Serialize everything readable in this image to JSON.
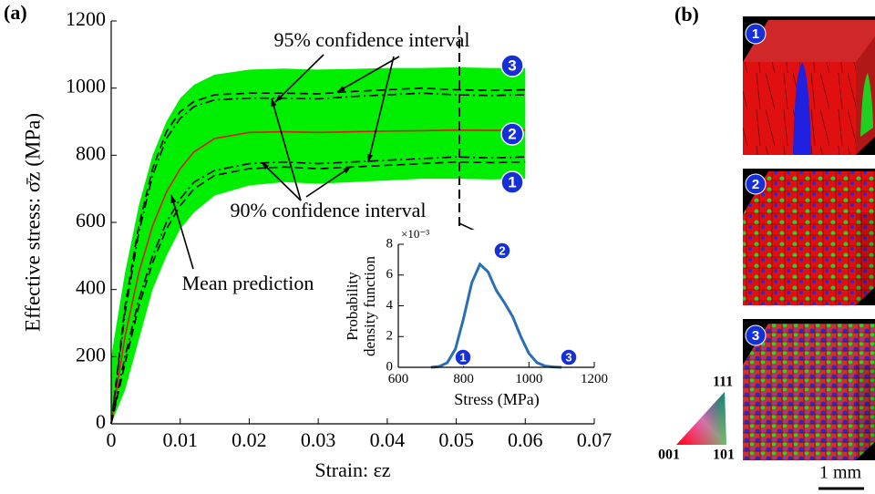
{
  "panel_labels": [
    "(a)",
    "(b)"
  ],
  "markers": [
    "1",
    "2",
    "3"
  ],
  "ipf_labels": [
    "111",
    "001",
    "101"
  ],
  "scale_bar": "1 mm",
  "chart_data": [
    {
      "type": "line",
      "xlabel": "Strain: εz",
      "ylabel": "Effective stress: σ̄z (MPa)",
      "xlim": [
        0,
        0.07
      ],
      "xticks": [
        0,
        0.01,
        0.02,
        0.03,
        0.04,
        0.05,
        0.06,
        0.07
      ],
      "ylim": [
        0,
        1200
      ],
      "yticks": [
        0,
        200,
        400,
        600,
        800,
        1000,
        1200
      ],
      "x": [
        0,
        0.002,
        0.004,
        0.006,
        0.008,
        0.01,
        0.012,
        0.015,
        0.02,
        0.025,
        0.03,
        0.035,
        0.04,
        0.045,
        0.05,
        0.055,
        0.06
      ],
      "band": {
        "color": "#00ee00",
        "upper": [
          200,
          450,
          650,
          800,
          900,
          970,
          1010,
          1040,
          1055,
          1058,
          1055,
          1057,
          1060,
          1060,
          1062,
          1060,
          1060
        ],
        "lower": [
          0,
          100,
          250,
          400,
          500,
          580,
          630,
          680,
          710,
          720,
          715,
          720,
          725,
          730,
          730,
          728,
          730
        ]
      },
      "series": [
        {
          "color": "#d62020",
          "style": "solid",
          "values": [
            0,
            260,
            450,
            590,
            690,
            760,
            810,
            850,
            868,
            870,
            868,
            870,
            872,
            873,
            875,
            874,
            875
          ]
        },
        {
          "color": "#000000",
          "style": "dashed",
          "values": [
            0,
            350,
            590,
            760,
            870,
            930,
            960,
            980,
            985,
            985,
            983,
            990,
            995,
            1000,
            995,
            993,
            995
          ]
        },
        {
          "color": "#000000",
          "style": "dashed",
          "values": [
            0,
            180,
            350,
            480,
            580,
            650,
            700,
            740,
            760,
            765,
            760,
            765,
            770,
            775,
            780,
            778,
            780
          ]
        },
        {
          "color": "#000000",
          "style": "dashdot",
          "values": [
            0,
            330,
            570,
            740,
            850,
            910,
            945,
            965,
            970,
            970,
            968,
            975,
            980,
            985,
            980,
            978,
            980
          ]
        },
        {
          "color": "#000000",
          "style": "dashdot",
          "values": [
            0,
            200,
            370,
            500,
            600,
            670,
            720,
            755,
            775,
            780,
            775,
            780,
            785,
            790,
            795,
            792,
            795
          ]
        }
      ],
      "annotations": [
        "95% confidence interval",
        "90% confidence interval",
        "Mean prediction"
      ]
    },
    {
      "type": "line",
      "xlabel": "Stress (MPa)",
      "ylabel": [
        "Probability",
        "density function"
      ],
      "y_multiplier": "×10⁻³",
      "xlim": [
        600,
        1200
      ],
      "xticks": [
        600,
        800,
        1000,
        1200
      ],
      "ylim": [
        0,
        8
      ],
      "yticks": [
        0,
        2,
        4,
        6,
        8
      ],
      "x": [
        700,
        725,
        750,
        775,
        800,
        825,
        850,
        875,
        900,
        925,
        950,
        975,
        1000,
        1025,
        1050,
        1075,
        1100
      ],
      "series": [
        {
          "color": "#2a6fb5",
          "style": "solid",
          "values": [
            0,
            0.05,
            0.3,
            1.2,
            3.2,
            5.5,
            6.7,
            6.2,
            5.0,
            4.2,
            3.3,
            2.0,
            0.9,
            0.3,
            0.08,
            0.02,
            0
          ]
        }
      ]
    }
  ]
}
